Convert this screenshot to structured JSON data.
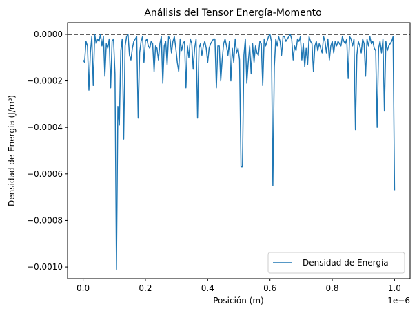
{
  "chart_data": {
    "type": "line",
    "title": "Análisis del Tensor Energía-Momento",
    "xlabel": "Posición (m)",
    "ylabel": "Densidad de Energía (J/m³)",
    "x_offset_label": "1e−6",
    "x_scale": 1e-06,
    "xlim": [
      -5e-08,
      1.05e-06
    ],
    "ylim": [
      -0.00105,
      5e-05
    ],
    "x_ticks": [
      {
        "value": 0.0,
        "label": "0.0"
      },
      {
        "value": 2e-07,
        "label": "0.2"
      },
      {
        "value": 4e-07,
        "label": "0.4"
      },
      {
        "value": 6e-07,
        "label": "0.6"
      },
      {
        "value": 8e-07,
        "label": "0.8"
      },
      {
        "value": 1e-06,
        "label": "1.0"
      }
    ],
    "y_ticks": [
      {
        "value": 0.0,
        "label": "0.0000"
      },
      {
        "value": -0.0002,
        "label": "−0.0002"
      },
      {
        "value": -0.0004,
        "label": "−0.0004"
      },
      {
        "value": -0.0006,
        "label": "−0.0006"
      },
      {
        "value": -0.0008,
        "label": "−0.0008"
      },
      {
        "value": -0.001,
        "label": "−0.0010"
      }
    ],
    "legend_position": "bottom-right",
    "grid": false,
    "reference_line": {
      "y": 0.0,
      "style": "dashed",
      "color": "#000000"
    },
    "series": [
      {
        "name": "Densidad de Energía",
        "color": "#1f77b4",
        "x_start": 0.0,
        "x_end": 1e-06,
        "y": [
          -0.00011,
          -0.00012,
          -3e-05,
          -5e-05,
          -0.00024,
          -8e-05,
          -1e-05,
          -0.00022,
          0.0,
          -4e-05,
          -2e-05,
          -3e-05,
          0.0,
          -5e-05,
          -1e-05,
          -0.00018,
          -4e-05,
          -6e-05,
          -2e-05,
          -0.00023,
          -3e-05,
          -2e-05,
          -0.00017,
          -0.00101,
          -0.00031,
          -0.00039,
          -7e-05,
          -2e-05,
          -0.00045,
          -5e-05,
          -1e-05,
          0.0,
          -9e-05,
          -0.00011,
          -6e-05,
          -3e-05,
          -2e-05,
          -1e-05,
          -0.00036,
          -8e-05,
          -3e-05,
          -1e-05,
          -0.00012,
          -3e-05,
          -2e-05,
          -5e-05,
          -6e-05,
          -3e-05,
          -4e-05,
          -0.00016,
          -5e-05,
          -6e-05,
          -0.00011,
          -4e-05,
          -1e-05,
          -0.00021,
          -5e-05,
          -3e-05,
          -0.00013,
          -1e-05,
          -2e-05,
          -8e-05,
          -3e-05,
          -1e-05,
          -6e-05,
          -0.00012,
          -0.00016,
          -2e-05,
          -7e-05,
          -4e-05,
          -3e-05,
          -0.00023,
          -5e-05,
          -0.0001,
          -2e-05,
          -4e-05,
          -0.00015,
          -6e-05,
          -2e-05,
          -0.00036,
          -6e-05,
          -4e-05,
          -9e-05,
          -5e-05,
          -3e-05,
          -6e-05,
          -0.00012,
          -6e-05,
          -4e-05,
          -3e-05,
          -2e-05,
          -2e-05,
          -0.00023,
          -5e-05,
          -5e-05,
          -0.0002,
          -0.00011,
          -4e-05,
          -2e-05,
          -5e-05,
          -9e-05,
          -3e-05,
          -0.0002,
          -6e-05,
          -0.00012,
          -2e-05,
          -8e-05,
          -6e-05,
          -0.00011,
          -0.00057,
          -0.00057,
          -9e-05,
          -2e-05,
          -0.00021,
          -0.00012,
          -5e-05,
          -0.00017,
          -4e-05,
          -0.00012,
          -5e-05,
          -8e-05,
          -9e-05,
          -3e-05,
          -4e-05,
          -0.00022,
          -2e-05,
          -5e-05,
          -3e-05,
          -1e-05,
          0.0,
          -3e-05,
          -0.00065,
          -0.00014,
          -2e-05,
          -5e-05,
          -1e-05,
          -3e-05,
          -9e-05,
          -1e-05,
          -1e-05,
          -3e-05,
          -2e-05,
          -1e-05,
          0.0,
          -2e-05,
          -0.00011,
          -5e-05,
          -7e-05,
          -2e-05,
          -3e-05,
          -1e-05,
          -0.00011,
          -4e-05,
          -0.00014,
          -6e-05,
          -0.00013,
          -1e-05,
          -3e-05,
          -4e-05,
          -0.00016,
          -5e-05,
          -3e-05,
          -7e-05,
          -4e-05,
          -6e-05,
          -8e-05,
          -1e-05,
          -3e-05,
          -8e-05,
          -2e-05,
          -0.00011,
          -5e-05,
          -3e-05,
          -8e-05,
          -3e-05,
          -5e-05,
          -3e-05,
          -4e-05,
          -5e-05,
          -1e-05,
          -3e-05,
          -4e-05,
          -2e-05,
          -0.00019,
          -1e-05,
          -2e-05,
          -5e-05,
          -2e-05,
          -0.00041,
          -9e-05,
          -3e-05,
          -5e-05,
          -8e-05,
          -2e-05,
          -4e-05,
          -0.00018,
          -2e-05,
          -5e-05,
          -1e-05,
          -4e-05,
          -3e-05,
          -6e-05,
          -7e-05,
          -0.0004,
          -6e-05,
          -3e-05,
          -8e-05,
          -2e-05,
          -0.00033,
          -3e-05,
          -7e-05,
          -5e-05,
          -4e-05,
          -3e-05,
          -1e-05,
          -0.00067
        ]
      }
    ]
  }
}
